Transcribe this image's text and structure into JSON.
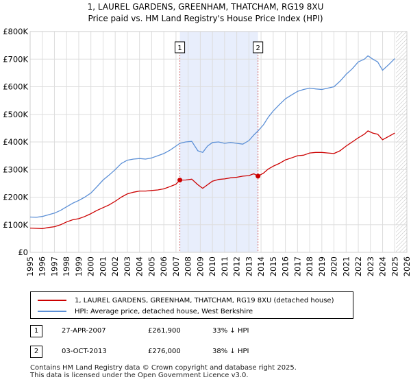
{
  "colors": {
    "property_line": "#cc0000",
    "hpi_line": "#5b8fd6",
    "shade": "#e8eefc",
    "grid": "#dddddd",
    "marker_line": "#d46a6a"
  },
  "chart_data": {
    "type": "line",
    "title": "1, LAUREL GARDENS, GREENHAM, THATCHAM, RG19 8XU",
    "subtitle": "Price paid vs. HM Land Registry's House Price Index (HPI)",
    "xlabel": "",
    "ylabel": "",
    "xlim": [
      1995,
      2026
    ],
    "ylim": [
      0,
      800000
    ],
    "grid": true,
    "y_ticks": [
      {
        "value": 0,
        "label": "£0"
      },
      {
        "value": 100000,
        "label": "£100K"
      },
      {
        "value": 200000,
        "label": "£200K"
      },
      {
        "value": 300000,
        "label": "£300K"
      },
      {
        "value": 400000,
        "label": "£400K"
      },
      {
        "value": 500000,
        "label": "£500K"
      },
      {
        "value": 600000,
        "label": "£600K"
      },
      {
        "value": 700000,
        "label": "£700K"
      },
      {
        "value": 800000,
        "label": "£800K"
      }
    ],
    "x_ticks": [
      "1995",
      "1996",
      "1997",
      "1998",
      "1999",
      "2000",
      "2001",
      "2002",
      "2003",
      "2004",
      "2005",
      "2006",
      "2007",
      "2008",
      "2009",
      "2010",
      "2011",
      "2012",
      "2013",
      "2014",
      "2015",
      "2016",
      "2017",
      "2018",
      "2019",
      "2020",
      "2021",
      "2022",
      "2023",
      "2024",
      "2025",
      "2026"
    ],
    "shaded_range": [
      2007.32,
      2013.75
    ],
    "forecast_start": 2025.1,
    "markers": [
      {
        "label": "1",
        "x": 2007.32,
        "y": 261900
      },
      {
        "label": "2",
        "x": 2013.75,
        "y": 276000
      }
    ],
    "series": [
      {
        "name": "1, LAUREL GARDENS, GREENHAM, THATCHAM, RG19 8XU (detached house)",
        "color": "#cc0000",
        "x": [
          1995.0,
          1995.5,
          1996.0,
          1996.5,
          1997.0,
          1997.5,
          1998.0,
          1998.5,
          1999.0,
          1999.5,
          2000.0,
          2000.5,
          2001.0,
          2001.5,
          2002.0,
          2002.5,
          2003.0,
          2003.5,
          2004.0,
          2004.5,
          2005.0,
          2005.5,
          2006.0,
          2006.5,
          2007.0,
          2007.32,
          2007.8,
          2008.3,
          2008.8,
          2009.2,
          2009.6,
          2010.0,
          2010.5,
          2011.0,
          2011.5,
          2012.0,
          2012.5,
          2013.0,
          2013.4,
          2013.75,
          2014.2,
          2014.6,
          2015.0,
          2015.5,
          2016.0,
          2016.5,
          2017.0,
          2017.5,
          2018.0,
          2018.5,
          2019.0,
          2019.5,
          2020.0,
          2020.5,
          2021.0,
          2021.5,
          2022.0,
          2022.5,
          2022.8,
          2023.2,
          2023.6,
          2024.0,
          2024.5,
          2025.0
        ],
        "values": [
          88000,
          87000,
          86000,
          90000,
          93000,
          100000,
          110000,
          118000,
          122000,
          130000,
          140000,
          152000,
          162000,
          172000,
          185000,
          200000,
          212000,
          218000,
          222000,
          222000,
          224000,
          226000,
          230000,
          238000,
          247000,
          261900,
          262000,
          265000,
          245000,
          232000,
          245000,
          258000,
          264000,
          266000,
          270000,
          272000,
          276000,
          278000,
          285000,
          276000,
          287000,
          302000,
          312000,
          322000,
          335000,
          342000,
          350000,
          352000,
          360000,
          362000,
          362000,
          360000,
          358000,
          368000,
          385000,
          400000,
          415000,
          428000,
          440000,
          432000,
          428000,
          408000,
          420000,
          432000
        ]
      },
      {
        "name": "HPI: Average price, detached house, West Berkshire",
        "color": "#5b8fd6",
        "x": [
          1995.0,
          1995.5,
          1996.0,
          1996.5,
          1997.0,
          1997.5,
          1998.0,
          1998.5,
          1999.0,
          1999.5,
          2000.0,
          2000.5,
          2001.0,
          2001.5,
          2002.0,
          2002.5,
          2003.0,
          2003.5,
          2004.0,
          2004.5,
          2005.0,
          2005.5,
          2006.0,
          2006.5,
          2007.0,
          2007.32,
          2007.8,
          2008.3,
          2008.8,
          2009.2,
          2009.6,
          2010.0,
          2010.5,
          2011.0,
          2011.5,
          2012.0,
          2012.5,
          2013.0,
          2013.4,
          2013.75,
          2014.2,
          2014.6,
          2015.0,
          2015.5,
          2016.0,
          2016.5,
          2017.0,
          2017.5,
          2018.0,
          2018.5,
          2019.0,
          2019.5,
          2020.0,
          2020.5,
          2021.0,
          2021.5,
          2022.0,
          2022.5,
          2022.8,
          2023.2,
          2023.6,
          2024.0,
          2024.5,
          2025.0
        ],
        "values": [
          128000,
          127000,
          130000,
          136000,
          142000,
          152000,
          165000,
          178000,
          188000,
          200000,
          215000,
          238000,
          262000,
          280000,
          300000,
          322000,
          334000,
          338000,
          340000,
          338000,
          342000,
          350000,
          358000,
          370000,
          385000,
          395000,
          400000,
          402000,
          368000,
          362000,
          385000,
          398000,
          400000,
          395000,
          398000,
          395000,
          392000,
          405000,
          425000,
          440000,
          462000,
          490000,
          512000,
          535000,
          556000,
          570000,
          583000,
          590000,
          595000,
          592000,
          590000,
          595000,
          600000,
          620000,
          645000,
          665000,
          690000,
          700000,
          712000,
          700000,
          690000,
          660000,
          680000,
          702000
        ]
      }
    ]
  },
  "legend": {
    "property_label": "1, LAUREL GARDENS, GREENHAM, THATCHAM, RG19 8XU (detached house)",
    "hpi_label": "HPI: Average price, detached house, West Berkshire"
  },
  "transactions": [
    {
      "num": "1",
      "date": "27-APR-2007",
      "price": "£261,900",
      "hpi": "33% ↓ HPI"
    },
    {
      "num": "2",
      "date": "03-OCT-2013",
      "price": "£276,000",
      "hpi": "38% ↓ HPI"
    }
  ],
  "footer": {
    "line1": "Contains HM Land Registry data © Crown copyright and database right 2025.",
    "line2": "This data is licensed under the Open Government Licence v3.0."
  }
}
